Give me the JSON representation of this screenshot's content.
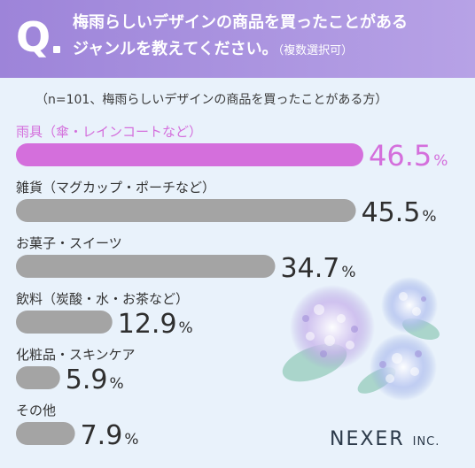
{
  "header": {
    "q_label": "Q",
    "question_line1": "梅雨らしいデザインの商品を買ったことがある",
    "question_line2": "ジャンルを教えてください。",
    "question_note": "（複数選択可）"
  },
  "subtitle": "（n=101、梅雨らしいデザインの商品を買ったことがある方）",
  "brand": {
    "name": "NEXER",
    "suffix": "INC."
  },
  "colors": {
    "highlight": "#d46fdc",
    "bar": "#a4a4a4",
    "header": "#a88fdf"
  },
  "chart_data": {
    "type": "bar",
    "orientation": "horizontal",
    "categories": [
      "雨具（傘・レインコートなど）",
      "雑貨（マグカップ・ポーチなど）",
      "お菓子・スイーツ",
      "飲料（炭酸・水・お茶など）",
      "化粧品・スキンケア",
      "その他"
    ],
    "values": [
      46.5,
      45.5,
      34.7,
      12.9,
      5.9,
      7.9
    ],
    "value_labels": [
      "46.5",
      "45.5",
      "34.7",
      "12.9",
      "5.9",
      "7.9"
    ],
    "unit": "%",
    "highlight_index": 0
  }
}
